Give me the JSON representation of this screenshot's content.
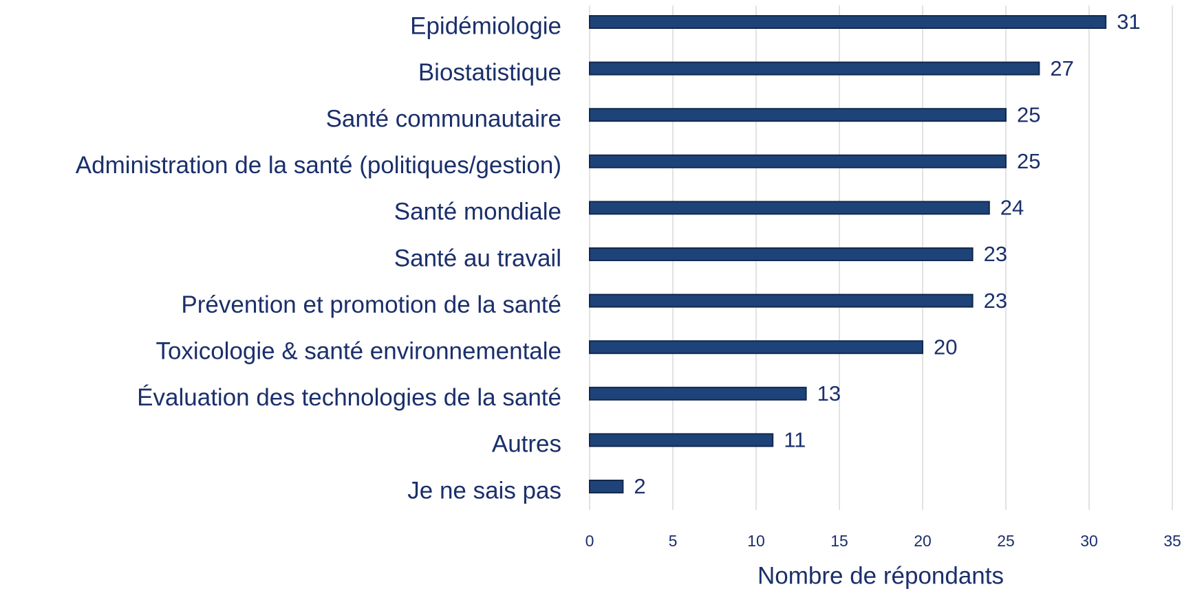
{
  "chart_data": {
    "type": "bar",
    "orientation": "horizontal",
    "categories": [
      "Epidémiologie",
      "Biostatistique",
      "Santé communautaire",
      "Administration de la santé (politiques/gestion)",
      "Santé mondiale",
      "Santé au travail",
      "Prévention et promotion de la santé",
      "Toxicologie & santé environnementale",
      "Évaluation des technologies de la santé",
      "Autres",
      "Je ne sais pas"
    ],
    "values": [
      31,
      27,
      25,
      25,
      24,
      23,
      23,
      20,
      13,
      11,
      2
    ],
    "color": "#1e4379",
    "x_label": "Nombre de répondants",
    "xlim": [
      0,
      35
    ],
    "xticks": [
      0,
      5,
      10,
      15,
      20,
      25,
      30,
      35
    ],
    "grid": true
  }
}
